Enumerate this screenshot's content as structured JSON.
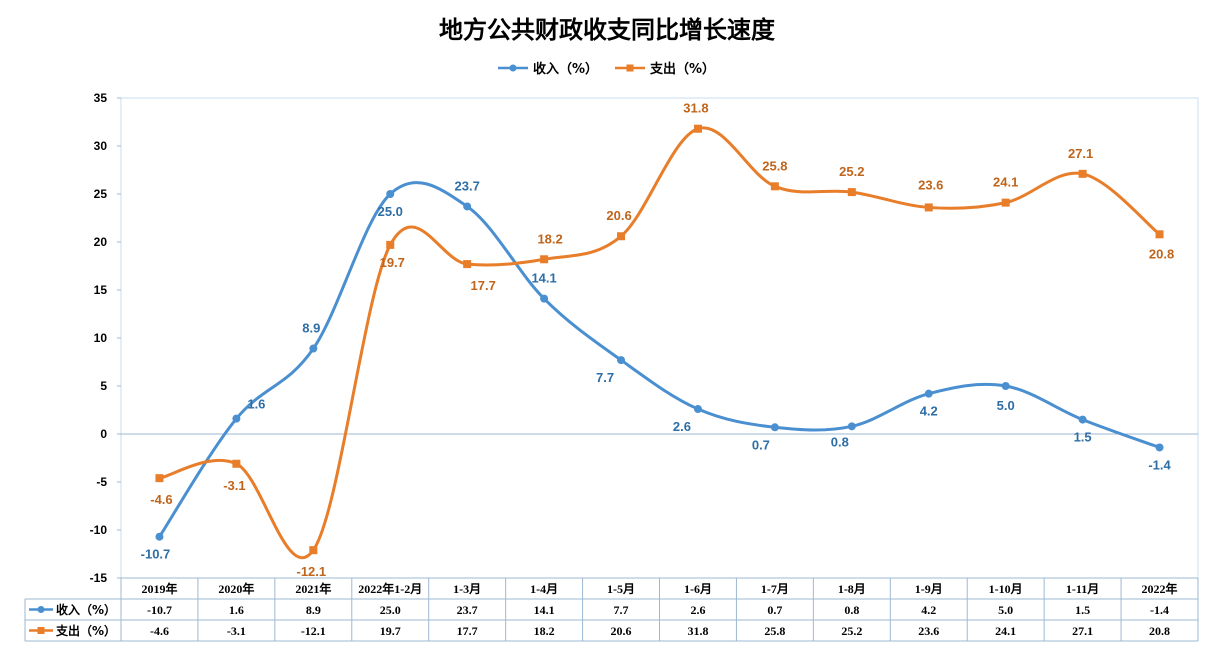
{
  "chart_data": {
    "type": "line",
    "title": "地方公共财政收支同比增长速度",
    "categories": [
      "2019年",
      "2020年",
      "2021年",
      "2022年1-2月",
      "1-3月",
      "1-4月",
      "1-5月",
      "1-6月",
      "1-7月",
      "1-8月",
      "1-9月",
      "1-10月",
      "1-11月",
      "2022年"
    ],
    "series": [
      {
        "name": "收入（%）",
        "color": "#4A8FD0",
        "labelColor": "#2E6EA6",
        "marker": "circle",
        "values": [
          -10.7,
          1.6,
          8.9,
          25.0,
          23.7,
          14.1,
          7.7,
          2.6,
          0.7,
          0.8,
          4.2,
          5.0,
          1.5,
          -1.4
        ]
      },
      {
        "name": "支出（%）",
        "color": "#E87D2A",
        "labelColor": "#C0651C",
        "marker": "square",
        "values": [
          -4.6,
          -3.1,
          -12.1,
          19.7,
          17.7,
          18.2,
          20.6,
          31.8,
          25.8,
          25.2,
          23.6,
          24.1,
          27.1,
          20.8
        ]
      }
    ],
    "ylim": [
      -15,
      35
    ],
    "yticks": [
      -15,
      -10,
      -5,
      0,
      5,
      10,
      15,
      20,
      25,
      30,
      35
    ],
    "xlabel": "",
    "ylabel": "",
    "legend": "top-center",
    "grid": false,
    "data_table": true
  }
}
